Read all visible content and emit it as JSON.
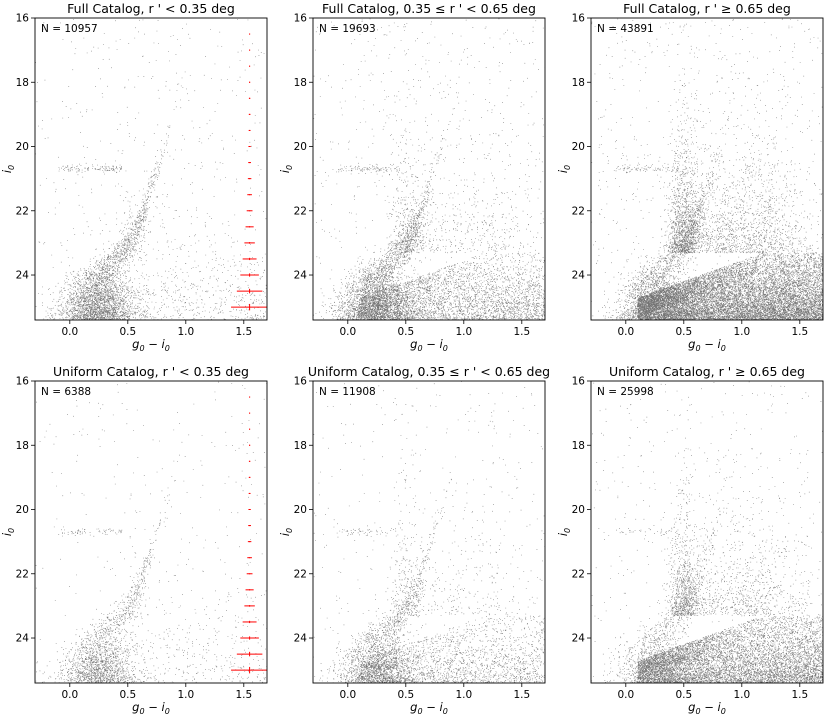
{
  "chart_data": [
    {
      "type": "scatter",
      "title": "Full Catalog, r ' < 0.35 deg",
      "annotation": "N = 10957",
      "n": 10957,
      "xlabel": "g0 − i0",
      "ylabel": "i0",
      "xlim": [
        -0.3,
        1.7
      ],
      "ylim": [
        25.4,
        16
      ],
      "y_inverted": true,
      "xticks": [
        "0.0",
        "0.5",
        "1.0",
        "1.5"
      ],
      "yticks": [
        "16",
        "18",
        "20",
        "22",
        "24"
      ],
      "grid": false,
      "error_bars": {
        "x": 1.55,
        "color": "#ff0000",
        "points": [
          {
            "y": 16.5,
            "xerr": 0.002,
            "yerr": 0.002
          },
          {
            "y": 17.0,
            "xerr": 0.003,
            "yerr": 0.003
          },
          {
            "y": 17.5,
            "xerr": 0.004,
            "yerr": 0.004
          },
          {
            "y": 18.0,
            "xerr": 0.005,
            "yerr": 0.005
          },
          {
            "y": 18.5,
            "xerr": 0.006,
            "yerr": 0.005
          },
          {
            "y": 19.0,
            "xerr": 0.007,
            "yerr": 0.006
          },
          {
            "y": 19.5,
            "xerr": 0.008,
            "yerr": 0.006
          },
          {
            "y": 20.0,
            "xerr": 0.01,
            "yerr": 0.007
          },
          {
            "y": 20.5,
            "xerr": 0.012,
            "yerr": 0.008
          },
          {
            "y": 21.0,
            "xerr": 0.015,
            "yerr": 0.01
          },
          {
            "y": 21.5,
            "xerr": 0.02,
            "yerr": 0.012
          },
          {
            "y": 22.0,
            "xerr": 0.025,
            "yerr": 0.015
          },
          {
            "y": 22.5,
            "xerr": 0.035,
            "yerr": 0.02
          },
          {
            "y": 23.0,
            "xerr": 0.045,
            "yerr": 0.025
          },
          {
            "y": 23.5,
            "xerr": 0.06,
            "yerr": 0.035
          },
          {
            "y": 24.0,
            "xerr": 0.08,
            "yerr": 0.05
          },
          {
            "y": 24.5,
            "xerr": 0.11,
            "yerr": 0.07
          },
          {
            "y": 25.0,
            "xerr": 0.16,
            "yerr": 0.1
          }
        ]
      }
    },
    {
      "type": "scatter",
      "title": "Full Catalog, 0.35 ≤ r ' < 0.65 deg",
      "annotation": "N = 19693",
      "n": 19693,
      "xlabel": "g0 − i0",
      "ylabel": "i0",
      "xlim": [
        -0.3,
        1.7
      ],
      "ylim": [
        25.4,
        16
      ],
      "y_inverted": true,
      "xticks": [
        "0.0",
        "0.5",
        "1.0",
        "1.5"
      ],
      "yticks": [
        "16",
        "18",
        "20",
        "22",
        "24"
      ],
      "grid": false
    },
    {
      "type": "scatter",
      "title": "Full Catalog, r ' ≥ 0.65 deg",
      "annotation": "N = 43891",
      "n": 43891,
      "xlabel": "g0 − i0",
      "ylabel": "i0",
      "xlim": [
        -0.3,
        1.7
      ],
      "ylim": [
        25.4,
        16
      ],
      "y_inverted": true,
      "xticks": [
        "0.0",
        "0.5",
        "1.0",
        "1.5"
      ],
      "yticks": [
        "16",
        "18",
        "20",
        "22",
        "24"
      ],
      "grid": false
    },
    {
      "type": "scatter",
      "title": "Uniform Catalog, r ' < 0.35 deg",
      "annotation": "N = 6388",
      "n": 6388,
      "xlabel": "g0 − i0",
      "ylabel": "i0",
      "xlim": [
        -0.3,
        1.7
      ],
      "ylim": [
        25.4,
        16
      ],
      "y_inverted": true,
      "xticks": [
        "0.0",
        "0.5",
        "1.0",
        "1.5"
      ],
      "yticks": [
        "16",
        "18",
        "20",
        "22",
        "24"
      ],
      "grid": false,
      "error_bars": {
        "x": 1.55,
        "color": "#ff0000",
        "points": [
          {
            "y": 16.5,
            "xerr": 0.002,
            "yerr": 0.002
          },
          {
            "y": 17.0,
            "xerr": 0.003,
            "yerr": 0.003
          },
          {
            "y": 17.5,
            "xerr": 0.004,
            "yerr": 0.004
          },
          {
            "y": 18.0,
            "xerr": 0.005,
            "yerr": 0.005
          },
          {
            "y": 18.5,
            "xerr": 0.006,
            "yerr": 0.005
          },
          {
            "y": 19.0,
            "xerr": 0.007,
            "yerr": 0.006
          },
          {
            "y": 19.5,
            "xerr": 0.008,
            "yerr": 0.006
          },
          {
            "y": 20.0,
            "xerr": 0.01,
            "yerr": 0.007
          },
          {
            "y": 20.5,
            "xerr": 0.012,
            "yerr": 0.008
          },
          {
            "y": 21.0,
            "xerr": 0.015,
            "yerr": 0.01
          },
          {
            "y": 21.5,
            "xerr": 0.02,
            "yerr": 0.012
          },
          {
            "y": 22.0,
            "xerr": 0.025,
            "yerr": 0.015
          },
          {
            "y": 22.5,
            "xerr": 0.035,
            "yerr": 0.02
          },
          {
            "y": 23.0,
            "xerr": 0.045,
            "yerr": 0.025
          },
          {
            "y": 23.5,
            "xerr": 0.06,
            "yerr": 0.035
          },
          {
            "y": 24.0,
            "xerr": 0.08,
            "yerr": 0.05
          },
          {
            "y": 24.5,
            "xerr": 0.11,
            "yerr": 0.07
          },
          {
            "y": 25.0,
            "xerr": 0.16,
            "yerr": 0.1
          }
        ]
      }
    },
    {
      "type": "scatter",
      "title": "Uniform Catalog, 0.35 ≤ r ' < 0.65 deg",
      "annotation": "N = 11908",
      "n": 11908,
      "xlabel": "g0 − i0",
      "ylabel": "i0",
      "xlim": [
        -0.3,
        1.7
      ],
      "ylim": [
        25.4,
        16
      ],
      "y_inverted": true,
      "xticks": [
        "0.0",
        "0.5",
        "1.0",
        "1.5"
      ],
      "yticks": [
        "16",
        "18",
        "20",
        "22",
        "24"
      ],
      "grid": false
    },
    {
      "type": "scatter",
      "title": "Uniform Catalog, r ' ≥ 0.65 deg",
      "annotation": "N = 25998",
      "n": 25998,
      "xlabel": "g0 − i0",
      "ylabel": "i0",
      "xlim": [
        -0.3,
        1.7
      ],
      "ylim": [
        25.4,
        16
      ],
      "y_inverted": true,
      "xticks": [
        "0.0",
        "0.5",
        "1.0",
        "1.5"
      ],
      "yticks": [
        "16",
        "18",
        "20",
        "22",
        "24"
      ],
      "grid": false
    }
  ]
}
